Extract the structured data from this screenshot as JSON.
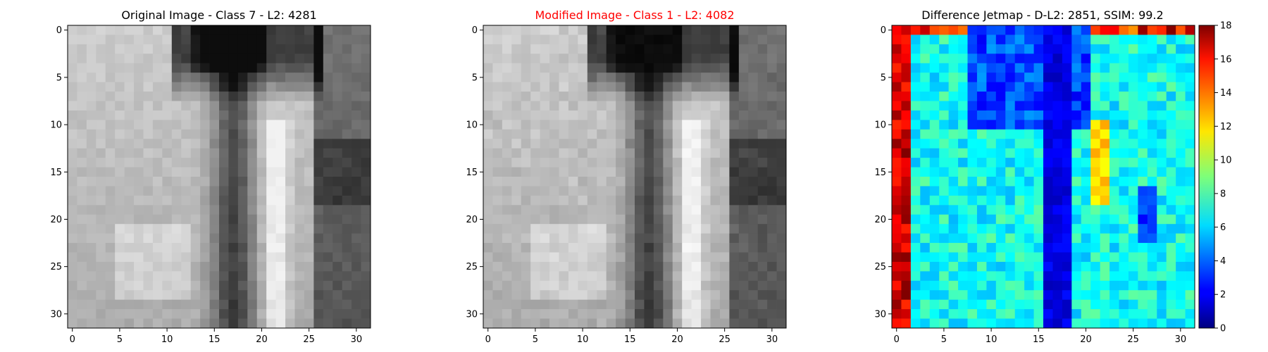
{
  "chart_data": [
    {
      "type": "heatmap",
      "colormap": "gray",
      "title": "Original Image - Class 7 - L2: 4281",
      "title_color": "#000000",
      "image_size": [
        32,
        32
      ],
      "xlim": [
        -0.5,
        31.5
      ],
      "ylim": [
        31.5,
        -0.5
      ],
      "xticks": [
        0,
        5,
        10,
        15,
        20,
        25,
        30
      ],
      "yticks": [
        0,
        5,
        10,
        15,
        20,
        25,
        30
      ],
      "colorbar": false
    },
    {
      "type": "heatmap",
      "colormap": "gray",
      "title": "Modified Image - Class 1 - L2: 4082",
      "title_color": "#ff0000",
      "image_size": [
        32,
        32
      ],
      "xlim": [
        -0.5,
        31.5
      ],
      "ylim": [
        31.5,
        -0.5
      ],
      "xticks": [
        0,
        5,
        10,
        15,
        20,
        25,
        30
      ],
      "yticks": [
        0,
        5,
        10,
        15,
        20,
        25,
        30
      ],
      "colorbar": false
    },
    {
      "type": "heatmap",
      "colormap": "jet",
      "title": "Difference Jetmap - D-L2: 2851, SSIM: 99.2",
      "title_color": "#000000",
      "image_size": [
        32,
        32
      ],
      "xlim": [
        -0.5,
        31.5
      ],
      "ylim": [
        31.5,
        -0.5
      ],
      "xticks": [
        0,
        5,
        10,
        15,
        20,
        25,
        30
      ],
      "yticks": [
        0,
        5,
        10,
        15,
        20,
        25,
        30
      ],
      "colorbar": true,
      "colorbar_range": [
        0,
        18
      ],
      "colorbar_ticks": [
        0,
        2,
        4,
        6,
        8,
        10,
        12,
        14,
        16,
        18
      ]
    }
  ]
}
